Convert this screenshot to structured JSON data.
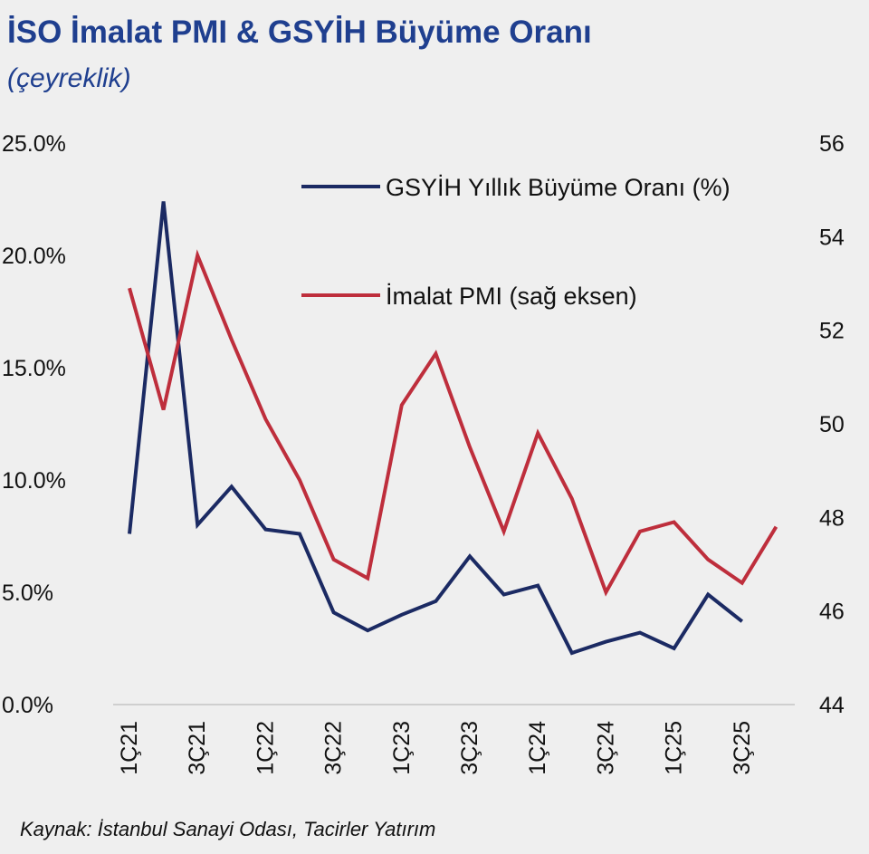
{
  "header": {
    "title": "İSO İmalat PMI & GSYİH Büyüme Oranı",
    "subtitle": "(çeyreklik)"
  },
  "source": "Kaynak: İstanbul Sanayi Odası, Tacirler Yatırım",
  "colors": {
    "gdp": "#1b2a63",
    "pmi": "#be2e3c",
    "title": "#1f3f8f",
    "axis": "#cfcfcf"
  },
  "chart_data": {
    "type": "line",
    "title": "İSO İmalat PMI & GSYİH Büyüme Oranı",
    "subtitle": "(çeyreklik)",
    "categories": [
      "1Ç21",
      "2Ç21",
      "3Ç21",
      "4Ç21",
      "1Ç22",
      "2Ç22",
      "3Ç22",
      "4Ç22",
      "1Ç23",
      "2Ç23",
      "3Ç23",
      "4Ç23",
      "1Ç24",
      "2Ç24",
      "3Ç24",
      "4Ç24",
      "1Ç25",
      "2Ç25",
      "3Ç25",
      "4Ç25"
    ],
    "x_tick_labels": [
      "1Ç21",
      "3Ç21",
      "1Ç22",
      "3Ç22",
      "1Ç23",
      "3Ç23",
      "1Ç24",
      "3Ç24",
      "1Ç25",
      "3Ç25"
    ],
    "left_axis": {
      "ylim": [
        0,
        25
      ],
      "ticks": [
        "0.0%",
        "5.0%",
        "10.0%",
        "15.0%",
        "20.0%",
        "25.0%"
      ]
    },
    "right_axis": {
      "ylim": [
        44,
        56
      ],
      "ticks": [
        "44",
        "46",
        "48",
        "50",
        "52",
        "54",
        "56"
      ]
    },
    "series": [
      {
        "name": "GSYİH Yıllık Büyüme Oranı (%)",
        "axis": "left",
        "values": [
          7.6,
          22.4,
          8.0,
          9.7,
          7.8,
          7.6,
          4.1,
          3.3,
          4.0,
          4.6,
          6.6,
          4.9,
          5.3,
          2.3,
          2.8,
          3.2,
          2.5,
          4.9,
          3.7,
          null
        ]
      },
      {
        "name": "İmalat PMI (sağ eksen)",
        "axis": "right",
        "values": [
          52.9,
          50.3,
          53.6,
          51.8,
          50.1,
          48.8,
          47.1,
          46.7,
          50.4,
          51.5,
          49.5,
          47.7,
          49.8,
          48.4,
          46.4,
          47.7,
          47.9,
          47.1,
          46.6,
          47.8
        ]
      }
    ],
    "legend": "top-right"
  }
}
